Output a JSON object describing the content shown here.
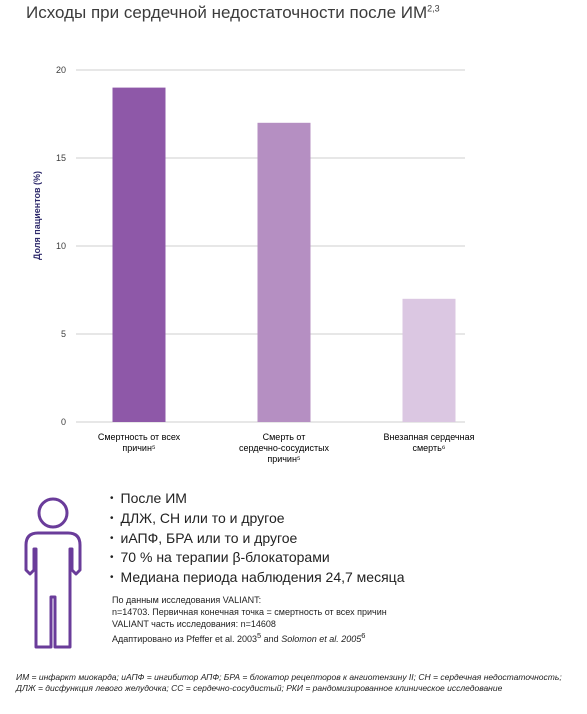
{
  "title": {
    "text": "Исходы при сердечной недостаточности после ИМ",
    "superscript": "2,3"
  },
  "chart_data": {
    "type": "bar",
    "categories": [
      "Смертность от всех причин5",
      "Смерть от сердечно-сосудистых причин5",
      "Внезапная сердечная смерть6"
    ],
    "category_lines": [
      [
        "Смертность от всех",
        "причин⁵"
      ],
      [
        "Смерть от",
        "сердечно-сосудистых",
        "причин⁵"
      ],
      [
        "Внезапная сердечная",
        "смерть⁶"
      ]
    ],
    "values": [
      19,
      17,
      7
    ],
    "colors": [
      "#8e58a8",
      "#b58fc2",
      "#dbc7e2"
    ],
    "ylabel": "Доля пациентов (%)",
    "ylim": [
      0,
      20
    ],
    "yticks": [
      0,
      5,
      10,
      15,
      20
    ],
    "grid": true
  },
  "bullets": [
    "После ИМ",
    "ДЛЖ, СН или то и другое",
    "иАПФ, БРА или то и другое",
    "70 % на терапии β-блокаторами",
    "Медиана периода наблюдения 24,7 месяца"
  ],
  "source": {
    "line1": "По данным исследования VALIANT:",
    "line2": "n=14703. Первичная конечная точка = смертность от всех причин",
    "line3": " VALIANT часть исследования: n=14608",
    "line4_a": "Адаптировано из Pfeffer et al. 2003",
    "line4_sup1": "5",
    "line4_b": " and ",
    "line4_italic": "Solomon et al. 2005",
    "line4_sup2": "6"
  },
  "footnote": "ИМ = инфаркт миокарда; иАПФ = ингибитор АПФ; БРА = блокатор рецепторов к ангиотензину II; СН = сердечная недостаточность; ДЛЖ = дисфункция левого желудочка; СС = сердечно-сосудистый; РКИ = рандомизированное клиническое исследование",
  "icons": {
    "person": "person-outline-icon"
  },
  "colors": {
    "axis_label": "#2e2a6b",
    "icon": "#6a3c9a",
    "grid": "#cfcfcf"
  }
}
